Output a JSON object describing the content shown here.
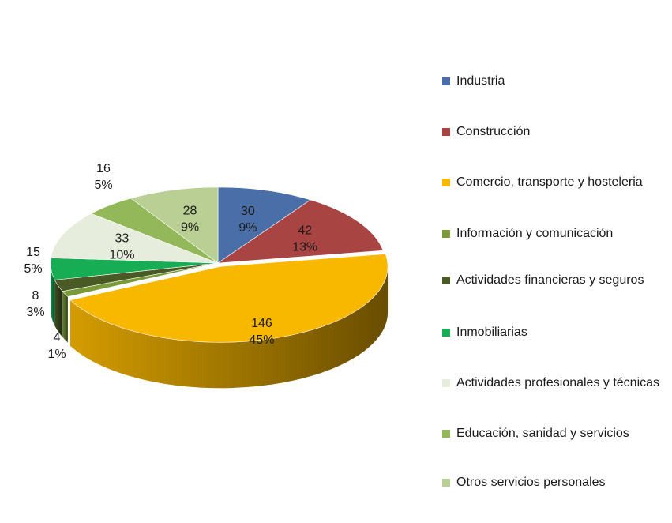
{
  "chart_data": {
    "type": "pie",
    "subtype": "3d-exploded",
    "title": "",
    "legend_position": "right",
    "categories": [
      "Industria",
      "Construcción",
      "Comercio, transporte y hosteleria",
      "Información y comunicación",
      "Actividades financieras y seguros",
      "Inmobiliarias",
      "Actividades profesionales y técnicas",
      "Educación, sanidad y servicios",
      "Otros servicios personales"
    ],
    "values": [
      30,
      42,
      146,
      4,
      8,
      15,
      33,
      16,
      28
    ],
    "percent_labels": [
      "9%",
      "13%",
      "45%",
      "1%",
      "3%",
      "5%",
      "10%",
      "5%",
      "9%"
    ],
    "value_labels": [
      "30",
      "42",
      "146",
      "4",
      "8",
      "15",
      "33",
      "16",
      "28"
    ],
    "colors": [
      "#4a6fa8",
      "#a84442",
      "#f9b800",
      "#7a9a3a",
      "#4a5a25",
      "#16ad55",
      "#e6eddc",
      "#93b859",
      "#b9cf94"
    ]
  }
}
